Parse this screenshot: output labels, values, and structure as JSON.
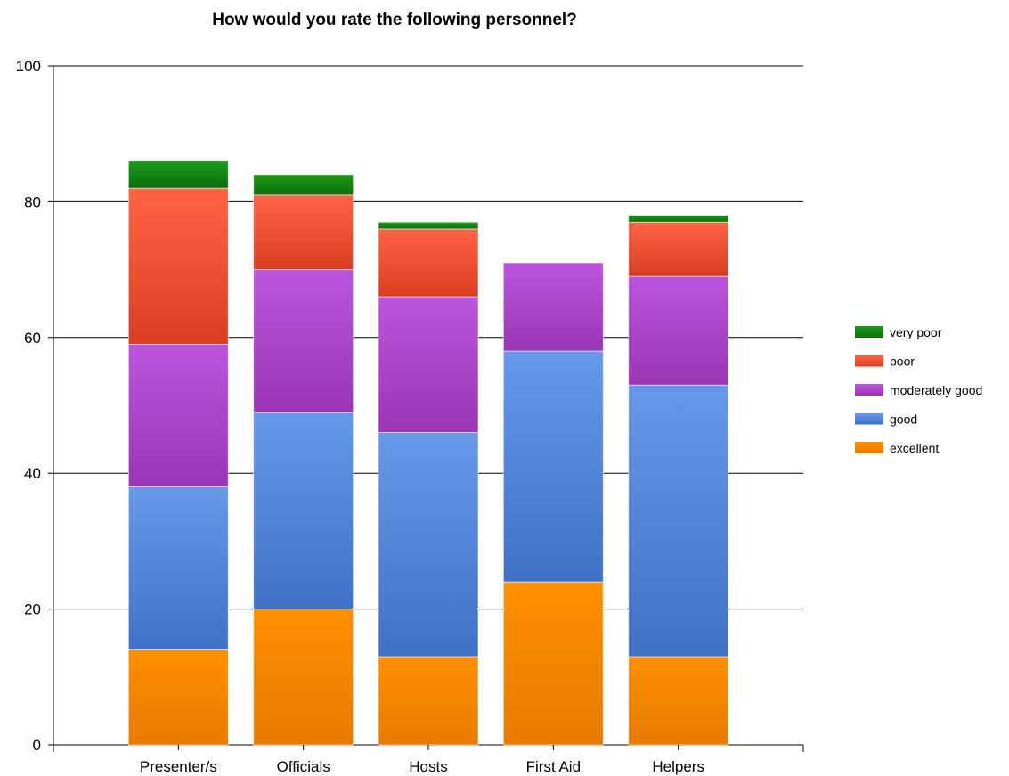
{
  "chart_data": {
    "type": "bar",
    "stacked": true,
    "title": "How would you rate the following personnel?",
    "xlabel": "",
    "ylabel": "",
    "ylim": [
      0,
      100
    ],
    "yticks": [
      "0",
      "20",
      "40",
      "60",
      "80",
      "100"
    ],
    "grid": true,
    "legend_position": "right",
    "categories": [
      "Presenter/s",
      "Officials",
      "Hosts",
      "First Aid",
      "Helpers"
    ],
    "series": [
      {
        "name": "excellent",
        "values": [
          14,
          20,
          13,
          24,
          13
        ],
        "color": "#e87a00",
        "color_light": "#ff9000"
      },
      {
        "name": "good",
        "values": [
          24,
          29,
          33,
          34,
          40
        ],
        "color": "#3f72c6",
        "color_light": "#6699e9"
      },
      {
        "name": "moderately good",
        "values": [
          21,
          21,
          20,
          13,
          16
        ],
        "color": "#9a36b4",
        "color_light": "#bb55dd"
      },
      {
        "name": "poor",
        "values": [
          23,
          11,
          10,
          0,
          8
        ],
        "color": "#db3d22",
        "color_light": "#ff6344"
      },
      {
        "name": "very poor",
        "values": [
          4,
          3,
          1,
          0,
          1
        ],
        "color": "#0b6f0b",
        "color_light": "#1f9a1f"
      }
    ]
  }
}
